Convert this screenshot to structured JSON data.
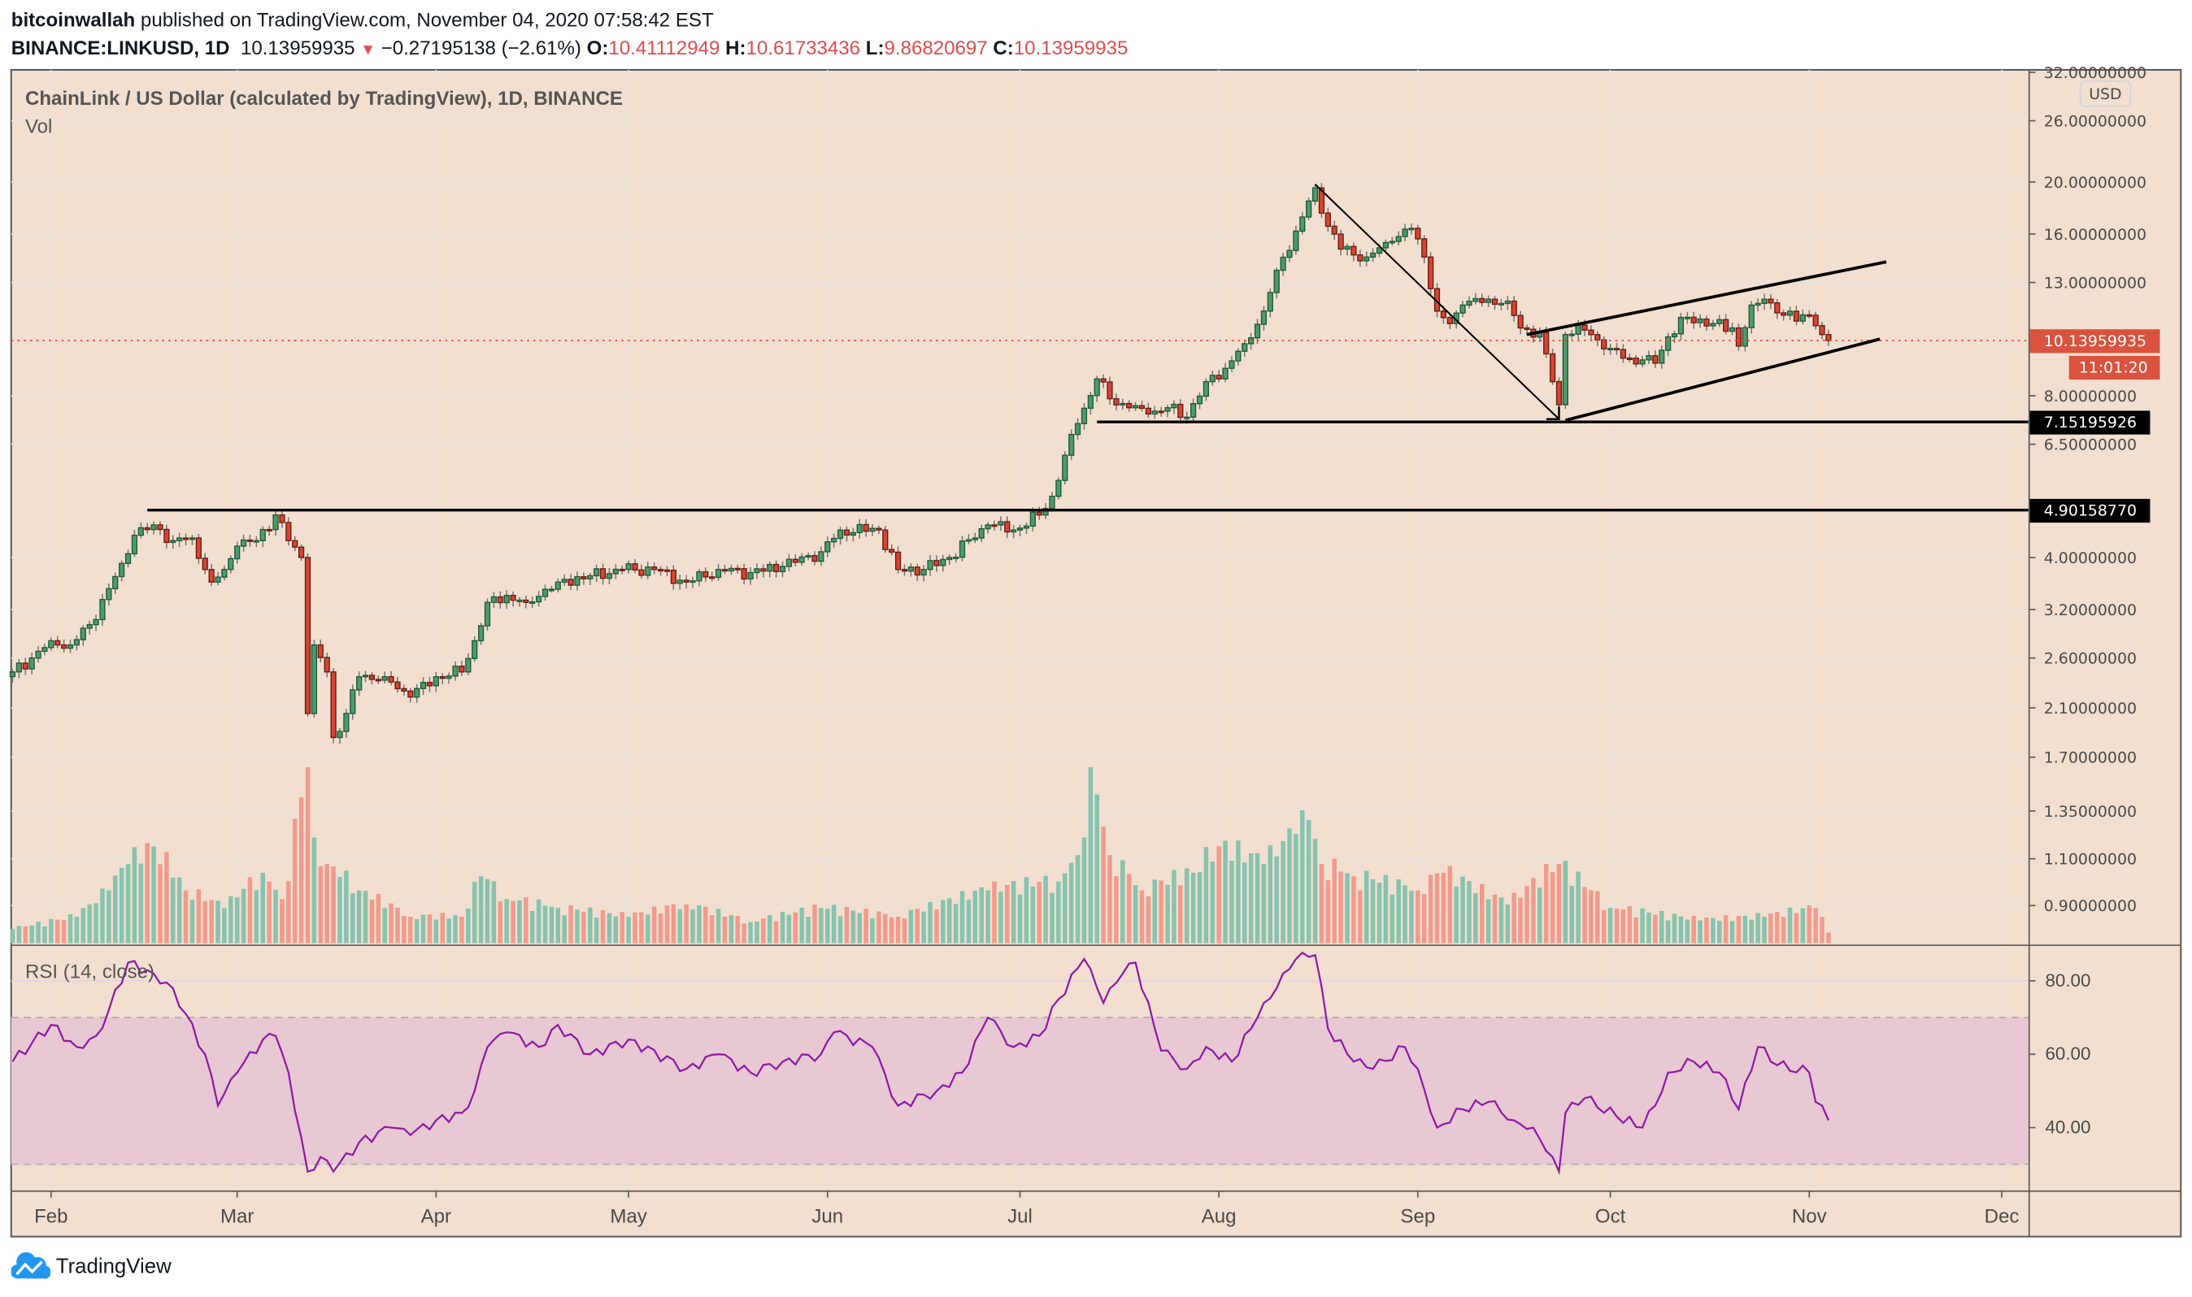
{
  "header": {
    "author": "bitcoinwallah",
    "published": " published on TradingView.com, November 04, 2020 07:58:42 EST",
    "symbol": "BINANCE:LINKUSD, 1D",
    "last": "10.13959935",
    "direction_icon": "triangle-down-icon",
    "change": "−0.27195138 (−2.61%)",
    "o_label": "O:",
    "o": "10.41112949",
    "h_label": "H:",
    "h": "10.61733436",
    "l_label": "L:",
    "l": "9.86820697",
    "c_label": "C:",
    "c": "10.13959935"
  },
  "legend": {
    "title": "ChainLink / US Dollar (calculated by TradingView), 1D, BINANCE",
    "vol": "Vol",
    "rsi": "RSI (14, close)"
  },
  "price_axis": {
    "currency": "USD",
    "ticks": [
      "32.00000000",
      "26.00000000",
      "20.00000000",
      "16.00000000",
      "13.00000000",
      "8.00000000",
      "6.50000000",
      "4.00000000",
      "3.20000000",
      "2.60000000",
      "2.10000000",
      "1.70000000",
      "1.35000000",
      "1.10000000",
      "0.90000000"
    ],
    "current_price": "10.13959935",
    "countdown": "11:01:20",
    "level_labels": [
      "7.15195926",
      "4.90158770"
    ]
  },
  "rsi_axis": {
    "ticks": [
      "80.00",
      "60.00",
      "40.00"
    ]
  },
  "time_axis": {
    "labels": [
      "Feb",
      "Mar",
      "Apr",
      "May",
      "Jun",
      "Jul",
      "Aug",
      "Sep",
      "Oct",
      "Nov",
      "Dec"
    ]
  },
  "footer": {
    "brand": "TradingView",
    "logo_icon": "tradingview-cloud-icon"
  },
  "colors": {
    "background": "#f2dfcf",
    "up": "#4e9b6c",
    "up_border": "#1d5a38",
    "down": "#d64533",
    "down_border": "#6a1a12",
    "vol_up": "#86c3ae",
    "vol_down": "#f19a8c",
    "rsi_line": "#8e1aa6",
    "rsi_band": "#e8c8d2",
    "price_tag": "#d9533f",
    "level_tag": "#000000",
    "brand": "#2196f3"
  },
  "chart_data": {
    "type": "candlestick",
    "symbol": "BINANCE:LINKUSD",
    "interval": "1D",
    "y_scale": "log",
    "ylim": [
      0.75,
      33
    ],
    "x_range": [
      "2020-01-26",
      "2020-12-08"
    ],
    "grid": true,
    "close_keypoints": [
      [
        "2020-01-26",
        2.45
      ],
      [
        "2020-01-29",
        2.6
      ],
      [
        "2020-02-01",
        2.8
      ],
      [
        "2020-02-04",
        2.75
      ],
      [
        "2020-02-07",
        3.0
      ],
      [
        "2020-02-10",
        3.5
      ],
      [
        "2020-02-12",
        3.9
      ],
      [
        "2020-02-14",
        4.4
      ],
      [
        "2020-02-17",
        4.6
      ],
      [
        "2020-02-20",
        4.3
      ],
      [
        "2020-02-23",
        4.35
      ],
      [
        "2020-02-26",
        3.6
      ],
      [
        "2020-02-28",
        3.8
      ],
      [
        "2020-03-01",
        4.2
      ],
      [
        "2020-03-04",
        4.3
      ],
      [
        "2020-03-07",
        4.8
      ],
      [
        "2020-03-09",
        4.3
      ],
      [
        "2020-03-11",
        4.0
      ],
      [
        "2020-03-12",
        2.05
      ],
      [
        "2020-03-13",
        2.75
      ],
      [
        "2020-03-15",
        2.45
      ],
      [
        "2020-03-16",
        1.85
      ],
      [
        "2020-03-18",
        2.05
      ],
      [
        "2020-03-20",
        2.4
      ],
      [
        "2020-03-24",
        2.4
      ],
      [
        "2020-03-28",
        2.2
      ],
      [
        "2020-04-01",
        2.4
      ],
      [
        "2020-04-05",
        2.45
      ],
      [
        "2020-04-07",
        2.8
      ],
      [
        "2020-04-09",
        3.3
      ],
      [
        "2020-04-12",
        3.4
      ],
      [
        "2020-04-15",
        3.3
      ],
      [
        "2020-04-20",
        3.6
      ],
      [
        "2020-04-25",
        3.7
      ],
      [
        "2020-04-30",
        3.8
      ],
      [
        "2020-05-05",
        3.8
      ],
      [
        "2020-05-10",
        3.6
      ],
      [
        "2020-05-15",
        3.8
      ],
      [
        "2020-05-20",
        3.75
      ],
      [
        "2020-05-25",
        3.85
      ],
      [
        "2020-05-31",
        4.1
      ],
      [
        "2020-06-03",
        4.5
      ],
      [
        "2020-06-09",
        4.5
      ],
      [
        "2020-06-12",
        3.8
      ],
      [
        "2020-06-16",
        3.8
      ],
      [
        "2020-06-20",
        4.0
      ],
      [
        "2020-06-26",
        4.6
      ],
      [
        "2020-06-30",
        4.5
      ],
      [
        "2020-07-04",
        4.8
      ],
      [
        "2020-07-06",
        5.2
      ],
      [
        "2020-07-08",
        6.2
      ],
      [
        "2020-07-10",
        7.1
      ],
      [
        "2020-07-13",
        8.6
      ],
      [
        "2020-07-15",
        7.9
      ],
      [
        "2020-07-18",
        7.6
      ],
      [
        "2020-07-21",
        7.4
      ],
      [
        "2020-07-24",
        7.6
      ],
      [
        "2020-07-27",
        7.3
      ],
      [
        "2020-07-30",
        8.5
      ],
      [
        "2020-08-02",
        9.0
      ],
      [
        "2020-08-05",
        10.0
      ],
      [
        "2020-08-08",
        11.5
      ],
      [
        "2020-08-10",
        13.7
      ],
      [
        "2020-08-13",
        16.2
      ],
      [
        "2020-08-16",
        19.5
      ],
      [
        "2020-08-17",
        17.5
      ],
      [
        "2020-08-20",
        15.0
      ],
      [
        "2020-08-24",
        14.5
      ],
      [
        "2020-08-28",
        15.5
      ],
      [
        "2020-08-31",
        16.4
      ],
      [
        "2020-09-02",
        14.5
      ],
      [
        "2020-09-04",
        11.5
      ],
      [
        "2020-09-06",
        10.9
      ],
      [
        "2020-09-08",
        11.8
      ],
      [
        "2020-09-12",
        12.1
      ],
      [
        "2020-09-15",
        12.0
      ],
      [
        "2020-09-17",
        10.7
      ],
      [
        "2020-09-20",
        10.5
      ],
      [
        "2020-09-22",
        8.5
      ],
      [
        "2020-09-23",
        7.7
      ],
      [
        "2020-09-24",
        10.4
      ],
      [
        "2020-09-27",
        10.6
      ],
      [
        "2020-10-01",
        9.8
      ],
      [
        "2020-10-04",
        9.4
      ],
      [
        "2020-10-08",
        9.2
      ],
      [
        "2020-10-10",
        10.3
      ],
      [
        "2020-10-13",
        11.2
      ],
      [
        "2020-10-17",
        10.9
      ],
      [
        "2020-10-20",
        10.7
      ],
      [
        "2020-10-21",
        9.9
      ],
      [
        "2020-10-23",
        11.8
      ],
      [
        "2020-10-25",
        12.1
      ],
      [
        "2020-10-28",
        11.3
      ],
      [
        "2020-11-01",
        11.3
      ],
      [
        "2020-11-03",
        10.4
      ],
      [
        "2020-11-04",
        10.14
      ]
    ],
    "volume_keypoints": [
      [
        "2020-01-26",
        0.08
      ],
      [
        "2020-02-05",
        0.15
      ],
      [
        "2020-02-10",
        0.3
      ],
      [
        "2020-02-13",
        0.45
      ],
      [
        "2020-02-17",
        0.55
      ],
      [
        "2020-02-22",
        0.3
      ],
      [
        "2020-02-28",
        0.2
      ],
      [
        "2020-03-05",
        0.4
      ],
      [
        "2020-03-08",
        0.25
      ],
      [
        "2020-03-12",
        1.0
      ],
      [
        "2020-03-13",
        0.6
      ],
      [
        "2020-03-15",
        0.45
      ],
      [
        "2020-03-20",
        0.3
      ],
      [
        "2020-03-28",
        0.15
      ],
      [
        "2020-04-05",
        0.15
      ],
      [
        "2020-04-08",
        0.38
      ],
      [
        "2020-04-12",
        0.25
      ],
      [
        "2020-04-20",
        0.2
      ],
      [
        "2020-05-01",
        0.15
      ],
      [
        "2020-05-10",
        0.22
      ],
      [
        "2020-05-20",
        0.12
      ],
      [
        "2020-05-31",
        0.2
      ],
      [
        "2020-06-12",
        0.15
      ],
      [
        "2020-06-26",
        0.3
      ],
      [
        "2020-07-07",
        0.35
      ],
      [
        "2020-07-10",
        0.5
      ],
      [
        "2020-07-12",
        1.0
      ],
      [
        "2020-07-15",
        0.5
      ],
      [
        "2020-07-20",
        0.3
      ],
      [
        "2020-07-28",
        0.4
      ],
      [
        "2020-08-01",
        0.55
      ],
      [
        "2020-08-08",
        0.45
      ],
      [
        "2020-08-13",
        0.62
      ],
      [
        "2020-08-15",
        0.7
      ],
      [
        "2020-08-17",
        0.45
      ],
      [
        "2020-08-22",
        0.38
      ],
      [
        "2020-09-01",
        0.3
      ],
      [
        "2020-09-05",
        0.4
      ],
      [
        "2020-09-15",
        0.22
      ],
      [
        "2020-09-23",
        0.45
      ],
      [
        "2020-10-01",
        0.2
      ],
      [
        "2020-10-15",
        0.13
      ],
      [
        "2020-10-25",
        0.15
      ],
      [
        "2020-11-02",
        0.2
      ],
      [
        "2020-11-04",
        0.06
      ]
    ],
    "rsi": {
      "name": "RSI (14, close)",
      "ylim": [
        20,
        92
      ],
      "band": [
        30,
        70
      ],
      "keypoints": [
        [
          "2020-01-26",
          58
        ],
        [
          "2020-02-01",
          68
        ],
        [
          "2020-02-05",
          62
        ],
        [
          "2020-02-08",
          65
        ],
        [
          "2020-02-10",
          72
        ],
        [
          "2020-02-13",
          85
        ],
        [
          "2020-02-17",
          82
        ],
        [
          "2020-02-20",
          78
        ],
        [
          "2020-02-25",
          60
        ],
        [
          "2020-02-27",
          46
        ],
        [
          "2020-03-01",
          55
        ],
        [
          "2020-03-05",
          64
        ],
        [
          "2020-03-07",
          65
        ],
        [
          "2020-03-09",
          55
        ],
        [
          "2020-03-12",
          28
        ],
        [
          "2020-03-14",
          32
        ],
        [
          "2020-03-16",
          28
        ],
        [
          "2020-03-20",
          36
        ],
        [
          "2020-03-25",
          40
        ],
        [
          "2020-03-28",
          38
        ],
        [
          "2020-04-01",
          42
        ],
        [
          "2020-04-05",
          44
        ],
        [
          "2020-04-07",
          50
        ],
        [
          "2020-04-09",
          62
        ],
        [
          "2020-04-12",
          66
        ],
        [
          "2020-04-17",
          62
        ],
        [
          "2020-04-20",
          68
        ],
        [
          "2020-04-25",
          60
        ],
        [
          "2020-05-01",
          64
        ],
        [
          "2020-05-10",
          56
        ],
        [
          "2020-05-15",
          60
        ],
        [
          "2020-05-20",
          55
        ],
        [
          "2020-05-25",
          58
        ],
        [
          "2020-05-31",
          60
        ],
        [
          "2020-06-02",
          66
        ],
        [
          "2020-06-08",
          62
        ],
        [
          "2020-06-12",
          46
        ],
        [
          "2020-06-18",
          50
        ],
        [
          "2020-06-22",
          55
        ],
        [
          "2020-06-26",
          70
        ],
        [
          "2020-06-30",
          62
        ],
        [
          "2020-07-04",
          65
        ],
        [
          "2020-07-07",
          75
        ],
        [
          "2020-07-11",
          86
        ],
        [
          "2020-07-14",
          74
        ],
        [
          "2020-07-17",
          82
        ],
        [
          "2020-07-19",
          85
        ],
        [
          "2020-07-23",
          61
        ],
        [
          "2020-07-27",
          56
        ],
        [
          "2020-07-30",
          62
        ],
        [
          "2020-08-03",
          58
        ],
        [
          "2020-08-07",
          70
        ],
        [
          "2020-08-10",
          78
        ],
        [
          "2020-08-13",
          86
        ],
        [
          "2020-08-16",
          87
        ],
        [
          "2020-08-18",
          67
        ],
        [
          "2020-08-22",
          58
        ],
        [
          "2020-08-25",
          56
        ],
        [
          "2020-08-30",
          62
        ],
        [
          "2020-09-01",
          56
        ],
        [
          "2020-09-04",
          40
        ],
        [
          "2020-09-08",
          45
        ],
        [
          "2020-09-12",
          47
        ],
        [
          "2020-09-16",
          42
        ],
        [
          "2020-09-19",
          40
        ],
        [
          "2020-09-22",
          32
        ],
        [
          "2020-09-23",
          28
        ],
        [
          "2020-09-24",
          44
        ],
        [
          "2020-09-27",
          48
        ],
        [
          "2020-10-02",
          43
        ],
        [
          "2020-10-06",
          40
        ],
        [
          "2020-10-08",
          46
        ],
        [
          "2020-10-10",
          55
        ],
        [
          "2020-10-14",
          58
        ],
        [
          "2020-10-18",
          55
        ],
        [
          "2020-10-21",
          45
        ],
        [
          "2020-10-24",
          62
        ],
        [
          "2020-10-27",
          57
        ],
        [
          "2020-11-01",
          55
        ],
        [
          "2020-11-02",
          47
        ],
        [
          "2020-11-04",
          42
        ]
      ]
    },
    "drawings": [
      {
        "kind": "horizontal",
        "price": 4.9015877,
        "from": "2020-02-16"
      },
      {
        "kind": "horizontal",
        "price": 7.15195926,
        "from": "2020-07-13"
      },
      {
        "kind": "trend",
        "from": [
          "2020-08-16",
          19.8
        ],
        "to": [
          "2020-09-23",
          7.24
        ],
        "arrow": true
      },
      {
        "kind": "trend",
        "from": [
          "2020-09-18",
          10.4
        ],
        "to": [
          "2020-11-13",
          14.2
        ]
      },
      {
        "kind": "trend",
        "from": [
          "2020-09-24",
          7.2
        ],
        "to": [
          "2020-11-12",
          10.2
        ]
      }
    ],
    "last_price_line": 10.13959935
  }
}
